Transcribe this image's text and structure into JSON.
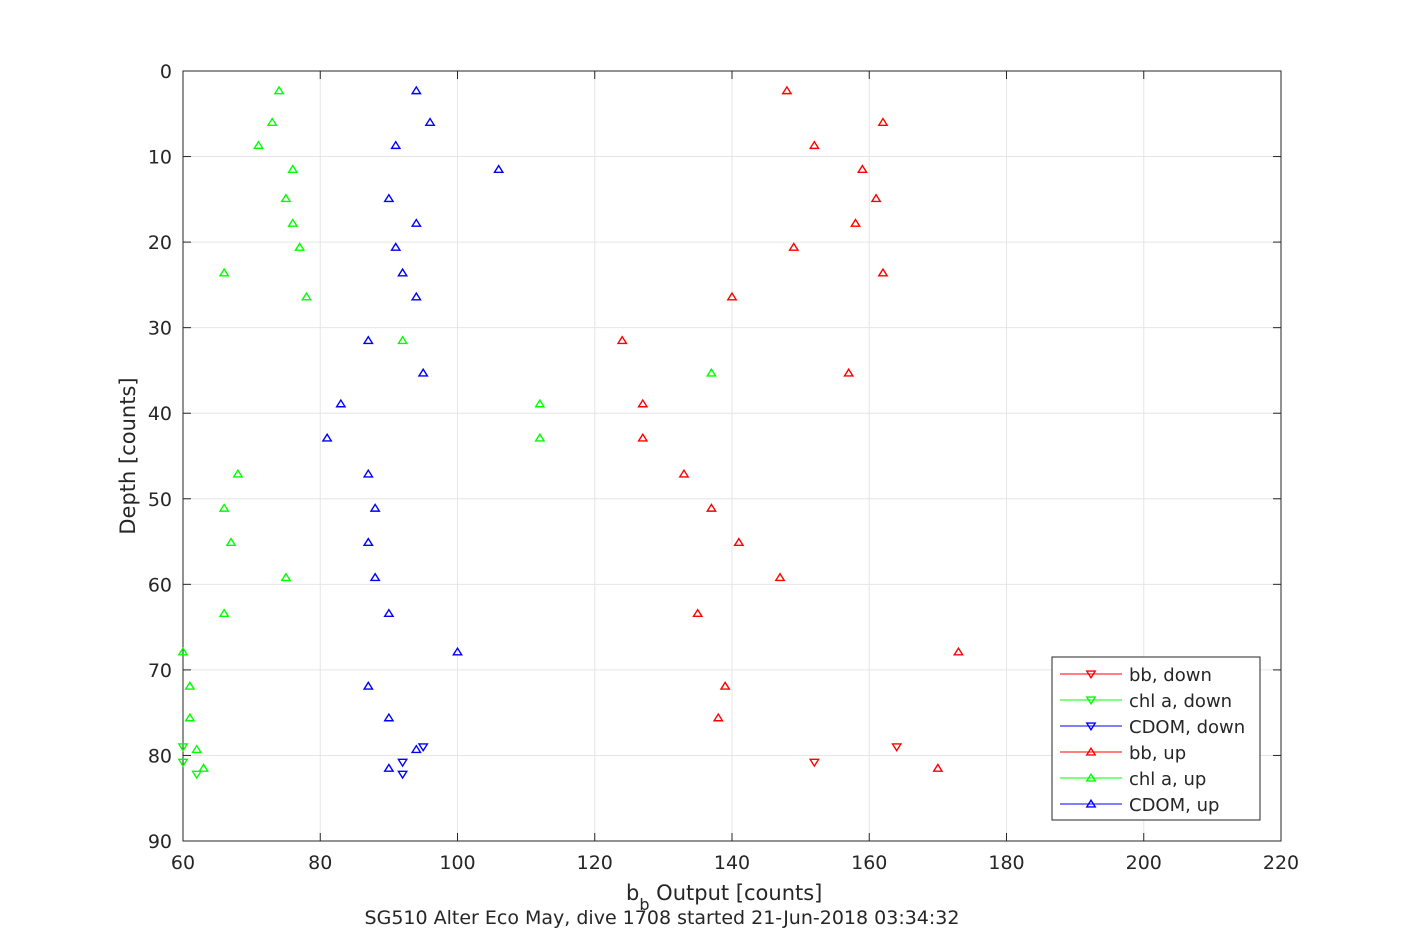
{
  "chart_data": {
    "type": "scatter",
    "title": "",
    "xlabel": "b",
    "xlabel_subscript": "b",
    "xlabel_rest": " Output [counts]",
    "ylabel": "Depth [counts]",
    "caption": "SG510 Alter Eco May, dive 1708 started 21-Jun-2018 03:34:32",
    "xlim": [
      60,
      220
    ],
    "ylim": [
      0,
      90
    ],
    "y_reversed": true,
    "grid": true,
    "legend_position": "bottom-right",
    "x_ticks": [
      60,
      80,
      100,
      120,
      140,
      160,
      180,
      200,
      220
    ],
    "y_ticks": [
      0,
      10,
      20,
      30,
      40,
      50,
      60,
      70,
      80,
      90
    ],
    "x_tick_labels": [
      "60",
      "80",
      "100",
      "120",
      "140",
      "160",
      "180",
      "200",
      "220"
    ],
    "y_tick_labels": [
      "0",
      "10",
      "20",
      "30",
      "40",
      "50",
      "60",
      "70",
      "80",
      "90"
    ],
    "series": [
      {
        "name": "bb, down",
        "color": "#ff0000",
        "marker": "triangle-down",
        "x": [
          164,
          152
        ],
        "y": [
          79.0,
          80.8
        ]
      },
      {
        "name": "chl a, down",
        "color": "#00ff00",
        "marker": "triangle-down",
        "x": [
          60,
          60,
          62
        ],
        "y": [
          79.0,
          80.8,
          82.2
        ]
      },
      {
        "name": "CDOM, down",
        "color": "#0000ff",
        "marker": "triangle-down",
        "x": [
          95,
          92,
          92
        ],
        "y": [
          79.0,
          80.8,
          82.2
        ]
      },
      {
        "name": "bb, up",
        "color": "#ff0000",
        "marker": "triangle-up",
        "x": [
          148,
          162,
          152,
          159,
          161,
          158,
          149,
          162,
          140,
          124,
          157,
          127,
          127,
          133,
          137,
          141,
          147,
          135,
          173,
          139,
          138,
          170
        ],
        "y": [
          2.3,
          6.0,
          8.7,
          11.5,
          14.9,
          17.8,
          20.6,
          23.6,
          26.4,
          31.5,
          35.3,
          38.9,
          42.9,
          47.1,
          51.1,
          55.1,
          59.2,
          63.4,
          67.9,
          71.9,
          75.6,
          81.5
        ]
      },
      {
        "name": "chl a, up",
        "color": "#00ff00",
        "marker": "triangle-up",
        "x": [
          74,
          73,
          71,
          76,
          75,
          76,
          77,
          66,
          78,
          92,
          137,
          112,
          112,
          68,
          66,
          67,
          75,
          66,
          60,
          61,
          61,
          62,
          63
        ],
        "y": [
          2.3,
          6.0,
          8.7,
          11.5,
          14.9,
          17.8,
          20.6,
          23.6,
          26.4,
          31.5,
          35.3,
          38.9,
          42.9,
          47.1,
          51.1,
          55.1,
          59.2,
          63.4,
          67.9,
          71.9,
          75.6,
          79.3,
          81.5
        ]
      },
      {
        "name": "CDOM, up",
        "color": "#0000ff",
        "marker": "triangle-up",
        "x": [
          94,
          96,
          91,
          106,
          90,
          94,
          91,
          92,
          94,
          87,
          95,
          83,
          81,
          87,
          88,
          87,
          88,
          90,
          100,
          87,
          90,
          94,
          90
        ],
        "y": [
          2.3,
          6.0,
          8.7,
          11.5,
          14.9,
          17.8,
          20.6,
          23.6,
          26.4,
          31.5,
          35.3,
          38.9,
          42.9,
          47.1,
          51.1,
          55.1,
          59.2,
          63.4,
          67.9,
          71.9,
          75.6,
          79.3,
          81.5
        ]
      }
    ]
  }
}
